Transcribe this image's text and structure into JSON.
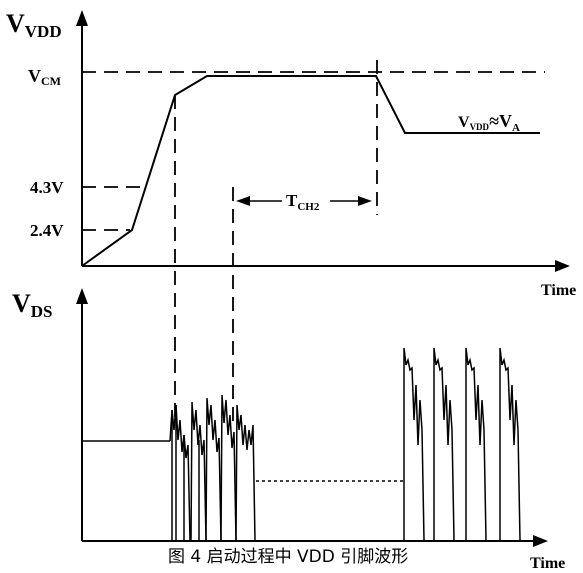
{
  "top_plot": {
    "y_axis_main": "V",
    "y_axis_sub": "VDD",
    "level_vcm_main": "V",
    "level_vcm_sub": "CM",
    "level_43": "4.3V",
    "level_24": "2.4V",
    "t_ch2_main": "T",
    "t_ch2_sub": "CH2",
    "vvdd_approx_main": "V",
    "vvdd_approx_sub": "VDD",
    "vvdd_approx_sym": "≈V",
    "vvdd_approx_sub2": "A",
    "x_axis": "Time"
  },
  "bottom_plot": {
    "y_axis_main": "V",
    "y_axis_sub": "DS",
    "x_axis": "Time"
  },
  "caption": "图 4 启动过程中 VDD 引脚波形"
}
